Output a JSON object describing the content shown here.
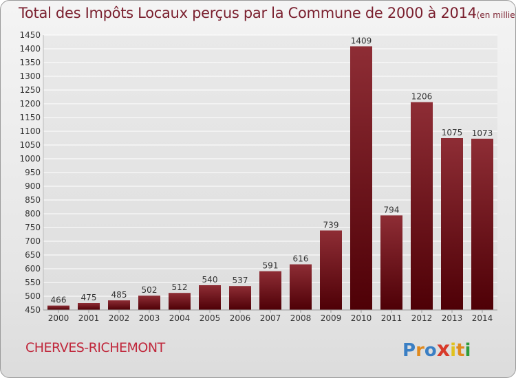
{
  "header": {
    "title": "Total des Impôts Locaux perçus par la Commune de 2000 à 2014",
    "unit": "(en milliers d'€)"
  },
  "footer": {
    "commune": "CHERVES-RICHEMONT",
    "brand": "Proxiti"
  },
  "colors": {
    "title": "#7a1f2e",
    "commune": "#c0283c",
    "bar_top": "#8e2d35",
    "bar_bottom": "#4e0006",
    "grid": "#ffffff",
    "axis_text": "#333333"
  },
  "chart_data": {
    "type": "bar",
    "title": "Total des Impôts Locaux perçus par la Commune de 2000 à 2014",
    "subtitle": "(en milliers d'€)",
    "xlabel": "",
    "ylabel": "",
    "categories": [
      "2000",
      "2001",
      "2002",
      "2003",
      "2004",
      "2005",
      "2006",
      "2007",
      "2008",
      "2009",
      "2010",
      "2011",
      "2012",
      "2013",
      "2014"
    ],
    "values": [
      466,
      475,
      485,
      502,
      512,
      540,
      537,
      591,
      616,
      739,
      1409,
      794,
      1206,
      1075,
      1073
    ],
    "ylim": [
      450,
      1450
    ],
    "ytick_step": 50,
    "grid": true,
    "data_labels": true
  }
}
